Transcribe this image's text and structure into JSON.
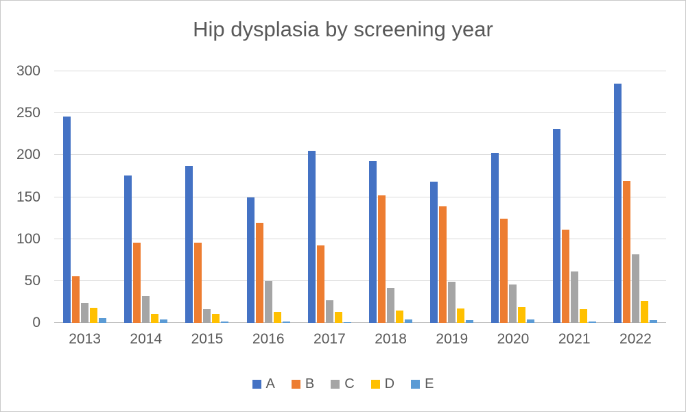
{
  "chart_data": {
    "type": "bar",
    "title": "Hip dysplasia by screening year",
    "xlabel": "",
    "ylabel": "",
    "categories": [
      "2013",
      "2014",
      "2015",
      "2016",
      "2017",
      "2018",
      "2019",
      "2020",
      "2021",
      "2022"
    ],
    "series": [
      {
        "name": "A",
        "color": "#4472C4",
        "values": [
          246,
          176,
          187,
          150,
          205,
          193,
          168,
          203,
          231,
          285
        ]
      },
      {
        "name": "B",
        "color": "#ED7D31",
        "values": [
          56,
          96,
          96,
          119,
          92,
          152,
          139,
          124,
          111,
          169
        ]
      },
      {
        "name": "C",
        "color": "#A5A5A5",
        "values": [
          24,
          32,
          16,
          50,
          27,
          42,
          49,
          46,
          61,
          82
        ]
      },
      {
        "name": "D",
        "color": "#FFC000",
        "values": [
          18,
          11,
          11,
          13,
          13,
          15,
          17,
          19,
          16,
          26
        ]
      },
      {
        "name": "E",
        "color": "#5B9BD5",
        "values": [
          6,
          4,
          2,
          2,
          1,
          4,
          3,
          4,
          2,
          3
        ]
      }
    ],
    "ylim": [
      0,
      300
    ],
    "yticks": [
      0,
      50,
      100,
      150,
      200,
      250,
      300
    ],
    "grid": true,
    "legend_position": "bottom",
    "text_color": "#595959",
    "gridline_color": "#D9D9D9"
  }
}
